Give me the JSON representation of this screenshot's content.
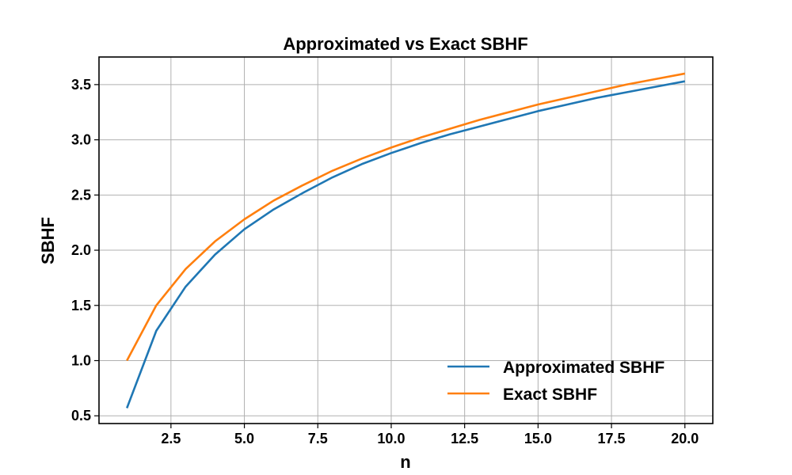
{
  "chart_data": {
    "type": "line",
    "title": "Approximated vs Exact SBHF",
    "xlabel": "n",
    "ylabel": "SBHF",
    "xlim": [
      0.05,
      20.95
    ],
    "ylim": [
      0.43,
      3.75
    ],
    "x_ticks": [
      "2.5",
      "5.0",
      "7.5",
      "10.0",
      "12.5",
      "15.0",
      "17.5",
      "20.0"
    ],
    "y_ticks": [
      "0.5",
      "1.0",
      "1.5",
      "2.0",
      "2.5",
      "3.0",
      "3.5"
    ],
    "grid": true,
    "legend_position": "lower-right",
    "x": [
      1,
      2,
      3,
      4,
      5,
      6,
      7,
      8,
      9,
      10,
      11,
      12,
      13,
      14,
      15,
      16,
      17,
      18,
      19,
      20
    ],
    "series": [
      {
        "name": "Approximated SBHF",
        "color": "#1f77b4",
        "values": [
          0.57,
          1.27,
          1.67,
          1.96,
          2.19,
          2.37,
          2.52,
          2.66,
          2.78,
          2.88,
          2.97,
          3.05,
          3.12,
          3.19,
          3.26,
          3.32,
          3.38,
          3.43,
          3.48,
          3.53
        ]
      },
      {
        "name": "Exact SBHF",
        "color": "#ff7f0e",
        "values": [
          1.0,
          1.5,
          1.83,
          2.08,
          2.28,
          2.45,
          2.59,
          2.72,
          2.83,
          2.93,
          3.02,
          3.1,
          3.18,
          3.25,
          3.32,
          3.38,
          3.44,
          3.5,
          3.55,
          3.6
        ]
      }
    ]
  }
}
